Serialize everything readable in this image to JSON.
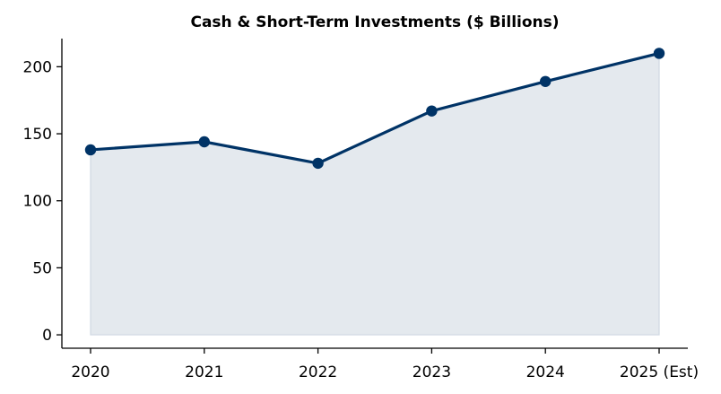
{
  "chart_data": {
    "type": "area",
    "title": "Cash & Short-Term Investments ($ Billions)",
    "xlabel": "",
    "ylabel": "",
    "categories": [
      "2020",
      "2021",
      "2022",
      "2023",
      "2024",
      "2025 (Est)"
    ],
    "values": [
      138,
      144,
      128,
      167,
      189,
      210
    ],
    "ylim": [
      -10,
      221
    ],
    "yticks": [
      0,
      50,
      100,
      150,
      200
    ],
    "grid": false,
    "legend": "none",
    "colors": {
      "line": "#003366",
      "marker": "#003366",
      "fill": "#e4e9ee",
      "fill_edge": "#cfd8e2",
      "axis": "#000000"
    }
  }
}
